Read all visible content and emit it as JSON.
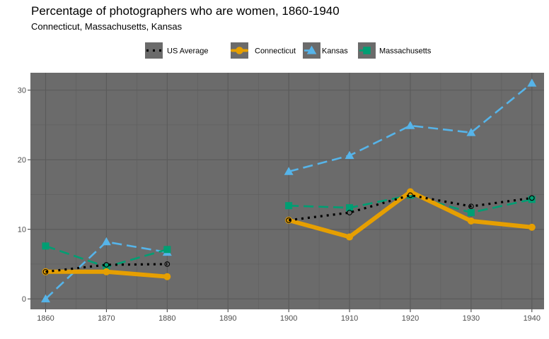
{
  "chart_data": {
    "type": "line",
    "title": "Percentage of photographers who are women, 1860-1940",
    "subtitle": "Connecticut, Massachusetts, Kansas",
    "xlabel": "",
    "ylabel": "",
    "x_ticks": [
      1860,
      1870,
      1880,
      1890,
      1900,
      1910,
      1920,
      1930,
      1940
    ],
    "y_ticks": [
      0,
      10,
      20,
      30
    ],
    "xlim": [
      1857.5,
      1942
    ],
    "ylim": [
      -1.5,
      32.5
    ],
    "grid": true,
    "legend_position": "top",
    "panel_color": "#6b6b6b",
    "series": [
      {
        "name": "US Average",
        "color": "#000000",
        "style": "dotted",
        "marker": "open-circle",
        "segments": [
          {
            "x": [
              1860,
              1870,
              1880
            ],
            "y": [
              3.9,
              4.9,
              5.0
            ]
          },
          {
            "x": [
              1900,
              1910,
              1920,
              1930,
              1940
            ],
            "y": [
              11.3,
              12.4,
              14.9,
              13.3,
              14.5
            ]
          }
        ]
      },
      {
        "name": "Connecticut",
        "color": "#e69f00",
        "style": "solid-thick",
        "marker": "circle",
        "segments": [
          {
            "x": [
              1860,
              1870,
              1880
            ],
            "y": [
              3.9,
              3.9,
              3.2
            ]
          },
          {
            "x": [
              1900,
              1910,
              1920,
              1930,
              1940
            ],
            "y": [
              11.3,
              8.9,
              15.4,
              11.2,
              10.3
            ]
          }
        ]
      },
      {
        "name": "Kansas",
        "color": "#56b4e9",
        "style": "dashed",
        "marker": "triangle",
        "segments": [
          {
            "x": [
              1860,
              1870,
              1880
            ],
            "y": [
              0.0,
              8.2,
              6.7
            ]
          },
          {
            "x": [
              1900,
              1910,
              1920,
              1930,
              1940
            ],
            "y": [
              18.3,
              20.6,
              24.9,
              23.9,
              31.0
            ]
          }
        ]
      },
      {
        "name": "Massachusetts",
        "color": "#009e73",
        "style": "dashed",
        "marker": "square",
        "segments": [
          {
            "x": [
              1860,
              1870,
              1880
            ],
            "y": [
              7.6,
              4.6,
              7.1
            ]
          },
          {
            "x": [
              1900,
              1910,
              1920,
              1930,
              1940
            ],
            "y": [
              13.4,
              13.1,
              14.9,
              12.4,
              14.3
            ]
          }
        ]
      }
    ]
  }
}
